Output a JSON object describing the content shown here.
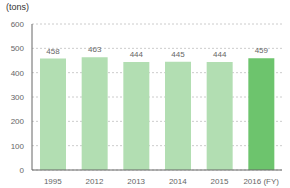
{
  "chart_data": {
    "type": "bar",
    "ylabel": "(tons)",
    "categories": [
      "1995",
      "2012",
      "2013",
      "2014",
      "2015",
      "2016 (FY)"
    ],
    "values": [
      458,
      463,
      444,
      445,
      444,
      459
    ],
    "colors": [
      "#b2deb2",
      "#b2deb2",
      "#b2deb2",
      "#b2deb2",
      "#b2deb2",
      "#6dc46d"
    ],
    "ylim": [
      0,
      600
    ],
    "yticks": [
      0,
      100,
      200,
      300,
      400,
      500,
      600
    ],
    "grid": true,
    "data_labels": true
  }
}
